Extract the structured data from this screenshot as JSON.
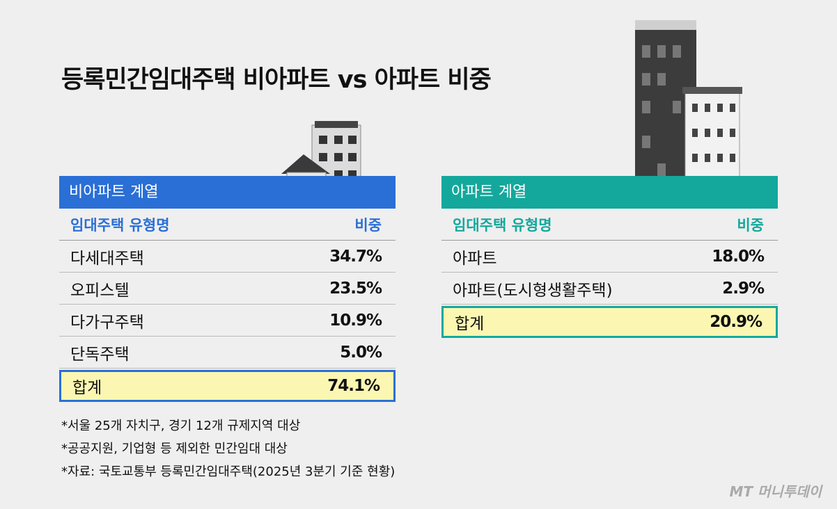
{
  "title": "등록민간임대주택 비아파트 vs 아파트 비중",
  "tables": [
    {
      "header": "비아파트 계열",
      "columns": [
        "임대주택 유형명",
        "비중"
      ],
      "rows": [
        [
          "다세대주택",
          "34.7%"
        ],
        [
          "오피스텔",
          "23.5%"
        ],
        [
          "다가구주택",
          "10.9%"
        ],
        [
          "단독주택",
          "5.0%"
        ]
      ],
      "total": [
        "합계",
        "74.1%"
      ]
    },
    {
      "header": "아파트 계열",
      "columns": [
        "임대주택 유형명",
        "비중"
      ],
      "rows": [
        [
          "아파트",
          "18.0%"
        ],
        [
          "아파트(도시형생활주택)",
          "2.9%"
        ]
      ],
      "total": [
        "합계",
        "20.9%"
      ]
    }
  ],
  "notes": [
    "*서울 25개 자치구, 경기 12개 규제지역 대상",
    "*공공지원, 기업형 등 제외한 민간임대 대상",
    "*자료: 국토교통부 등록민간임대주택(2025년 3분기 기준 현황)"
  ],
  "logo": "MT 머니투데이"
}
